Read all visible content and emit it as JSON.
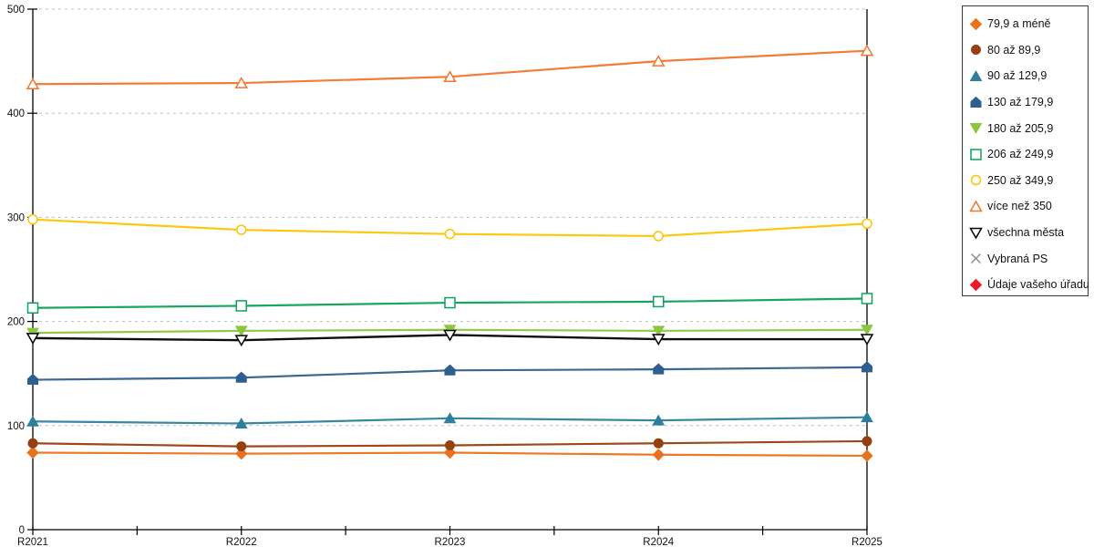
{
  "chart_data": {
    "type": "line",
    "title": "",
    "xlabel": "",
    "ylabel": "",
    "categories": [
      "R2021",
      "R2022",
      "R2023",
      "R2024",
      "R2025"
    ],
    "ylim": [
      0,
      500
    ],
    "y_ticks": [
      0,
      100,
      200,
      300,
      400,
      500
    ],
    "grid": "horizontal dashed gridlines at each 100",
    "legend_position": "right",
    "colors": {
      "axis": "#000000",
      "gridline": "#bfbfbf",
      "legend_border": "#3a3a3a",
      "background": "#ffffff"
    },
    "series": [
      {
        "name": "79,9 a méně",
        "marker": "diamond",
        "style": "filled",
        "color": "#e8731e",
        "values": [
          74,
          73,
          74,
          72,
          71
        ]
      },
      {
        "name": "80 až 89,9",
        "marker": "circle",
        "style": "filled",
        "color": "#963f10",
        "values": [
          83,
          80,
          81,
          83,
          85
        ]
      },
      {
        "name": "90 až 129,9",
        "marker": "triangle-up",
        "style": "filled",
        "color": "#2e7f9c",
        "values": [
          104,
          102,
          107,
          105,
          108
        ]
      },
      {
        "name": "130 až 179,9",
        "marker": "pentagon",
        "style": "filled",
        "color": "#2f5f8f",
        "values": [
          144,
          146,
          153,
          154,
          156
        ]
      },
      {
        "name": "180 až 205,9",
        "marker": "triangle-down",
        "style": "filled",
        "color": "#8cc63e",
        "values": [
          189,
          191,
          192,
          191,
          192
        ]
      },
      {
        "name": "206 až 249,9",
        "marker": "square",
        "style": "hollow",
        "color": "#0ca259",
        "values": [
          213,
          215,
          218,
          219,
          222
        ]
      },
      {
        "name": "250 až 349,9",
        "marker": "circle",
        "style": "hollow",
        "color": "#fdc400",
        "values": [
          298,
          288,
          284,
          282,
          294
        ]
      },
      {
        "name": "více než 350",
        "marker": "triangle-up",
        "style": "hollow",
        "color": "#f4752b",
        "values": [
          428,
          429,
          435,
          450,
          460
        ]
      },
      {
        "name": "všechna města",
        "marker": "triangle-down",
        "style": "hollow",
        "color": "#000000",
        "values": [
          184,
          182,
          187,
          183,
          183
        ]
      },
      {
        "name": "Vybraná PS",
        "marker": "x",
        "style": "line",
        "color": "#8c8c8c",
        "values": []
      },
      {
        "name": "Údaje vašeho úřadu",
        "marker": "diamond",
        "style": "filled",
        "color": "#ed1c24",
        "values": []
      }
    ]
  }
}
